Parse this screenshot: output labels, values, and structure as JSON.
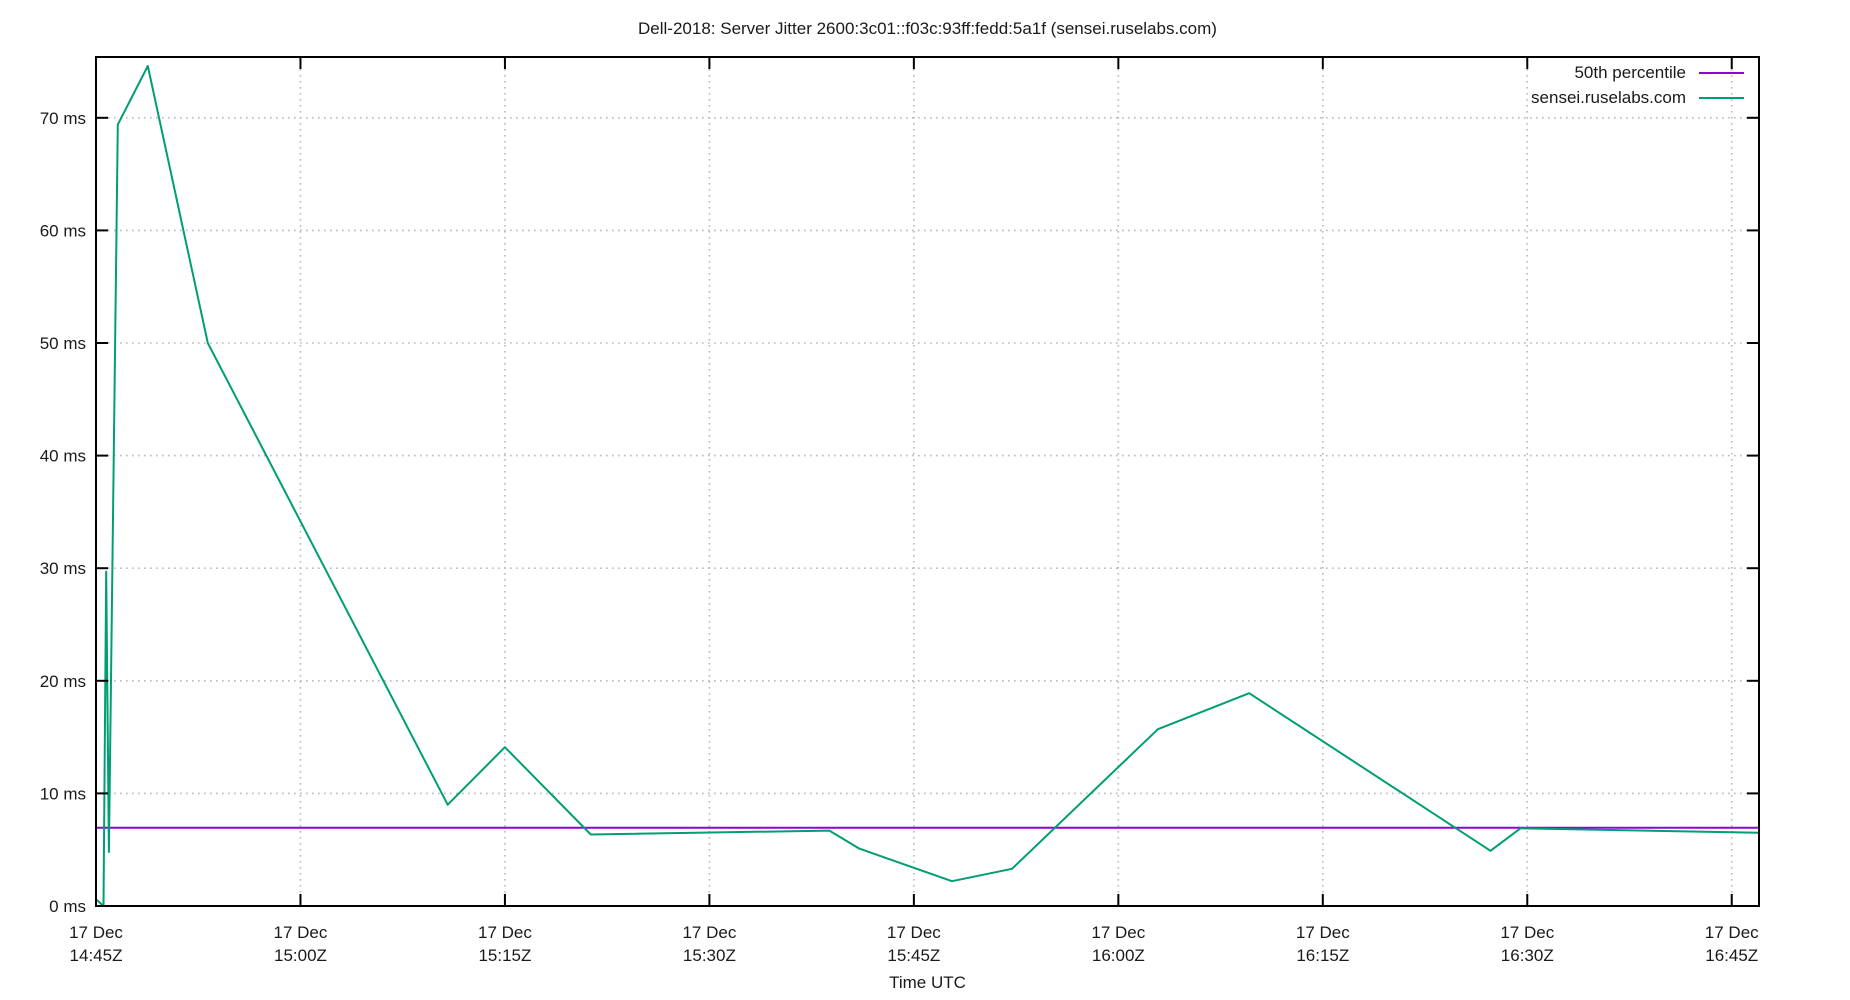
{
  "chart_data": {
    "type": "line",
    "title": "Dell-2018: Server Jitter 2600:3c01::f03c:93ff:fedd:5a1f (sensei.ruselabs.com)",
    "xlabel": "Time UTC",
    "ylabel": "",
    "y_unit": "ms",
    "ylim": [
      0,
      75.4
    ],
    "x_minutes_range": [
      0,
      122
    ],
    "grid": true,
    "legend_position": "top-right-inside",
    "y_ticks": [
      {
        "value": 0,
        "label": "0 ms"
      },
      {
        "value": 10,
        "label": "10 ms"
      },
      {
        "value": 20,
        "label": "20 ms"
      },
      {
        "value": 30,
        "label": "30 ms"
      },
      {
        "value": 40,
        "label": "40 ms"
      },
      {
        "value": 50,
        "label": "50 ms"
      },
      {
        "value": 60,
        "label": "60 ms"
      },
      {
        "value": 70,
        "label": "70 ms"
      }
    ],
    "x_ticks": [
      {
        "minutes": 0,
        "date": "17 Dec",
        "time": "14:45Z"
      },
      {
        "minutes": 15,
        "date": "17 Dec",
        "time": "15:00Z"
      },
      {
        "minutes": 30,
        "date": "17 Dec",
        "time": "15:15Z"
      },
      {
        "minutes": 45,
        "date": "17 Dec",
        "time": "15:30Z"
      },
      {
        "minutes": 60,
        "date": "17 Dec",
        "time": "15:45Z"
      },
      {
        "minutes": 75,
        "date": "17 Dec",
        "time": "16:00Z"
      },
      {
        "minutes": 90,
        "date": "17 Dec",
        "time": "16:15Z"
      },
      {
        "minutes": 105,
        "date": "17 Dec",
        "time": "16:30Z"
      },
      {
        "minutes": 120,
        "date": "17 Dec",
        "time": "16:45Z"
      }
    ],
    "series": [
      {
        "name": "50th percentile",
        "color": "#9400d3",
        "points_minutes_ms": [
          [
            0,
            6.95
          ],
          [
            122,
            6.95
          ]
        ]
      },
      {
        "name": "sensei.ruselabs.com",
        "color": "#009e73",
        "points_minutes_ms": [
          [
            0,
            0.6
          ],
          [
            0.55,
            0.0
          ],
          [
            0.75,
            29.7
          ],
          [
            0.95,
            4.8
          ],
          [
            1.6,
            69.4
          ],
          [
            3.8,
            74.6
          ],
          [
            8.2,
            50.0
          ],
          [
            25.8,
            9.0
          ],
          [
            30.0,
            14.1
          ],
          [
            36.3,
            6.35
          ],
          [
            53.8,
            6.7
          ],
          [
            56.0,
            5.1
          ],
          [
            62.8,
            2.2
          ],
          [
            67.2,
            3.3
          ],
          [
            77.9,
            15.7
          ],
          [
            84.6,
            18.9
          ],
          [
            102.3,
            4.9
          ],
          [
            104.5,
            6.9
          ],
          [
            122,
            6.5
          ]
        ]
      }
    ],
    "style": {
      "background": "#ffffff",
      "axis_color": "#000000",
      "grid_color": "#b9b9b9",
      "text_color": "#1a1a1a"
    }
  }
}
